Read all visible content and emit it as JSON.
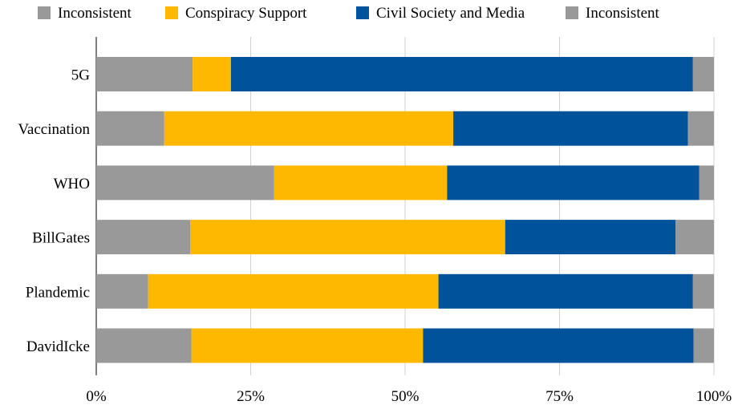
{
  "chart_data": {
    "type": "bar",
    "orientation": "horizontal",
    "stacked": true,
    "categories": [
      "5G",
      "Vaccination",
      "WHO",
      "BillGates",
      "Plandemic",
      "DavidIcke"
    ],
    "series": [
      {
        "name": "Inconsistent",
        "color": "#999999",
        "values": [
          15.6,
          11.0,
          28.8,
          15.2,
          8.4,
          15.4
        ]
      },
      {
        "name": "Conspiracy Support",
        "color": "#ffb800",
        "values": [
          6.2,
          46.8,
          28.0,
          51.0,
          47.0,
          37.5
        ]
      },
      {
        "name": "Civil Society and Media",
        "color": "#00529b",
        "values": [
          74.8,
          38.0,
          40.8,
          27.6,
          41.2,
          43.8
        ]
      },
      {
        "name": "Inconsistent",
        "color": "#999999",
        "values": [
          3.4,
          4.2,
          2.4,
          6.2,
          3.4,
          3.3
        ]
      }
    ],
    "xlim": [
      0,
      100
    ],
    "xticks": [
      "0%",
      "25%",
      "50%",
      "75%",
      "100%"
    ],
    "grid": true,
    "legend_position": "top"
  }
}
